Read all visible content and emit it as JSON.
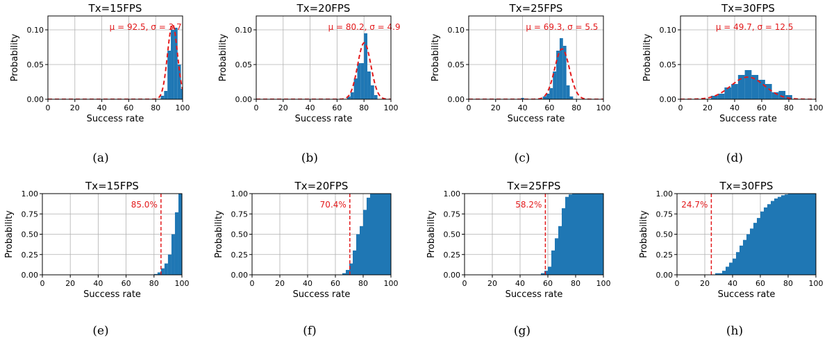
{
  "chart_data": [
    {
      "type": "bar",
      "panel": "a",
      "kind": "pdf",
      "caption": "(a)",
      "title": "Tx=15FPS",
      "xlabel": "Success rate",
      "ylabel": "Probability",
      "xlim": [
        0,
        100
      ],
      "ylim": [
        0,
        0.12
      ],
      "xticks": [
        "0",
        "20",
        "40",
        "60",
        "80",
        "100"
      ],
      "yticks": [
        "0.00",
        "0.05",
        "0.10"
      ],
      "grid": true,
      "bar_color": "#1f77b4",
      "fit_color": "#e31a1c",
      "bin_edges": [
        83.75,
        86.25,
        88.75,
        91.25,
        93.75,
        96.25,
        98.75,
        101.25
      ],
      "bin_values": [
        0.005,
        0.012,
        0.07,
        0.1,
        0.103,
        0.05,
        0.015
      ],
      "annotation": {
        "text": "μ = 92.5,  σ = 3.7",
        "mu": 92.5,
        "sigma": 3.7
      }
    },
    {
      "type": "bar",
      "panel": "b",
      "kind": "pdf",
      "caption": "(b)",
      "title": "Tx=20FPS",
      "xlabel": "Success rate",
      "ylabel": "Probability",
      "xlim": [
        0,
        100
      ],
      "ylim": [
        0,
        0.12
      ],
      "xticks": [
        "0",
        "20",
        "40",
        "60",
        "80",
        "100"
      ],
      "yticks": [
        "0.00",
        "0.05",
        "0.10"
      ],
      "grid": true,
      "bar_color": "#1f77b4",
      "fit_color": "#e31a1c",
      "bin_edges": [
        67.5,
        70,
        72.5,
        75,
        77.5,
        80,
        82.5,
        85,
        87.5,
        90
      ],
      "bin_values": [
        0.004,
        0.01,
        0.03,
        0.052,
        0.052,
        0.095,
        0.04,
        0.02,
        0.006
      ],
      "annotation": {
        "text": "μ = 80.2,  σ = 4.9",
        "mu": 80.2,
        "sigma": 4.9
      }
    },
    {
      "type": "bar",
      "panel": "c",
      "kind": "pdf",
      "caption": "(c)",
      "title": "Tx=25FPS",
      "xlabel": "Success rate",
      "ylabel": "Probability",
      "xlim": [
        0,
        100
      ],
      "ylim": [
        0,
        0.12
      ],
      "xticks": [
        "0",
        "20",
        "40",
        "60",
        "80",
        "100"
      ],
      "yticks": [
        "0.00",
        "0.05",
        "0.10"
      ],
      "grid": true,
      "bar_color": "#1f77b4",
      "fit_color": "#e31a1c",
      "bin_edges": [
        39,
        41,
        55,
        57.5,
        60,
        62.5,
        65,
        67.5,
        70,
        72.5,
        75,
        77.5
      ],
      "bin_values": [
        0.002,
        0,
        0.004,
        0.008,
        0.016,
        0.04,
        0.07,
        0.088,
        0.077,
        0.02,
        0.004
      ],
      "annotation": {
        "text": "μ = 69.3,  σ = 5.5",
        "mu": 69.3,
        "sigma": 5.5
      }
    },
    {
      "type": "bar",
      "panel": "d",
      "kind": "pdf",
      "caption": "(d)",
      "title": "Tx=30FPS",
      "xlabel": "Success rate",
      "ylabel": "Probability",
      "xlim": [
        0,
        100
      ],
      "ylim": [
        0,
        0.12
      ],
      "xticks": [
        "0",
        "20",
        "40",
        "60",
        "80",
        "100"
      ],
      "yticks": [
        "0.00",
        "0.05",
        "0.10"
      ],
      "grid": true,
      "bar_color": "#1f77b4",
      "fit_color": "#e31a1c",
      "bin_edges": [
        22.5,
        27.5,
        32.5,
        37.5,
        42.5,
        47.5,
        52.5,
        57.5,
        62.5,
        67.5,
        72.5,
        77.5,
        82.5
      ],
      "bin_values": [
        0.005,
        0.008,
        0.017,
        0.022,
        0.035,
        0.042,
        0.035,
        0.028,
        0.022,
        0.01,
        0.012,
        0.006
      ],
      "annotation": {
        "text": "μ = 49.7,  σ = 12.5",
        "mu": 49.7,
        "sigma": 12.5
      }
    },
    {
      "type": "bar",
      "panel": "e",
      "kind": "cdf",
      "caption": "(e)",
      "title": "Tx=15FPS",
      "xlabel": "Success rate",
      "ylabel": "Probability",
      "xlim": [
        0,
        100
      ],
      "ylim": [
        0,
        1
      ],
      "xticks": [
        "0",
        "20",
        "40",
        "60",
        "80",
        "100"
      ],
      "yticks": [
        "0.00",
        "0.25",
        "0.50",
        "0.75",
        "1.00"
      ],
      "grid": true,
      "bar_color": "#1f77b4",
      "fit_color": "#e31a1c",
      "bin_edges": [
        80,
        82.5,
        85,
        87.5,
        90,
        92.5,
        95,
        97.5,
        100
      ],
      "bin_values": [
        0.01,
        0.03,
        0.08,
        0.14,
        0.25,
        0.5,
        0.77,
        1.0
      ],
      "annotation": {
        "text": "85.0%",
        "threshold": 85.0
      }
    },
    {
      "type": "bar",
      "panel": "f",
      "kind": "cdf",
      "caption": "(f)",
      "title": "Tx=20FPS",
      "xlabel": "Success rate",
      "ylabel": "Probability",
      "xlim": [
        0,
        100
      ],
      "ylim": [
        0,
        1
      ],
      "xticks": [
        "0",
        "20",
        "40",
        "60",
        "80",
        "100"
      ],
      "yticks": [
        "0.00",
        "0.25",
        "0.50",
        "0.75",
        "1.00"
      ],
      "grid": true,
      "bar_color": "#1f77b4",
      "fit_color": "#e31a1c",
      "bin_edges": [
        65,
        67.5,
        70,
        72.5,
        75,
        77.5,
        80,
        82.5,
        85,
        87.5,
        90,
        92.5,
        95,
        97.5,
        100
      ],
      "bin_values": [
        0.02,
        0.06,
        0.14,
        0.3,
        0.5,
        0.6,
        0.8,
        0.95,
        1.0,
        1.0,
        1.0,
        1.0,
        1.0,
        1.0
      ],
      "annotation": {
        "text": "70.4%",
        "threshold": 70.4
      }
    },
    {
      "type": "bar",
      "panel": "g",
      "kind": "cdf",
      "caption": "(g)",
      "title": "Tx=25FPS",
      "xlabel": "Success rate",
      "ylabel": "Probability",
      "xlim": [
        0,
        100
      ],
      "ylim": [
        0,
        1
      ],
      "xticks": [
        "0",
        "20",
        "40",
        "60",
        "80",
        "100"
      ],
      "yticks": [
        "0.00",
        "0.25",
        "0.50",
        "0.75",
        "1.00"
      ],
      "grid": true,
      "bar_color": "#1f77b4",
      "fit_color": "#e31a1c",
      "bin_edges": [
        55,
        57.5,
        60,
        62.5,
        65,
        67.5,
        70,
        72.5,
        75,
        77.5,
        80,
        82.5,
        85,
        87.5,
        90,
        92.5,
        95,
        97.5,
        100
      ],
      "bin_values": [
        0.02,
        0.05,
        0.1,
        0.3,
        0.45,
        0.6,
        0.82,
        0.96,
        0.99,
        1.0,
        1.0,
        1.0,
        1.0,
        1.0,
        1.0,
        1.0,
        1.0,
        1.0
      ],
      "annotation": {
        "text": "58.2%",
        "threshold": 58.2
      }
    },
    {
      "type": "bar",
      "panel": "h",
      "kind": "cdf",
      "caption": "(h)",
      "title": "Tx=30FPS",
      "xlabel": "Success rate",
      "ylabel": "Probability",
      "xlim": [
        0,
        100
      ],
      "ylim": [
        0,
        1
      ],
      "xticks": [
        "0",
        "20",
        "40",
        "60",
        "80",
        "100"
      ],
      "yticks": [
        "0.00",
        "0.25",
        "0.50",
        "0.75",
        "1.00"
      ],
      "grid": true,
      "bar_color": "#1f77b4",
      "fit_color": "#e31a1c",
      "bin_edges": [
        27.5,
        32.5,
        35,
        37.5,
        40,
        42.5,
        45,
        47.5,
        50,
        52.5,
        55,
        57.5,
        60,
        62.5,
        65,
        67.5,
        70,
        72.5,
        75,
        77.5,
        80,
        100
      ],
      "bin_values": [
        0.02,
        0.05,
        0.1,
        0.15,
        0.2,
        0.28,
        0.36,
        0.43,
        0.5,
        0.57,
        0.64,
        0.7,
        0.78,
        0.83,
        0.87,
        0.91,
        0.94,
        0.96,
        0.98,
        0.99,
        1.0
      ],
      "annotation": {
        "text": "24.7%",
        "threshold": 24.7
      }
    }
  ]
}
